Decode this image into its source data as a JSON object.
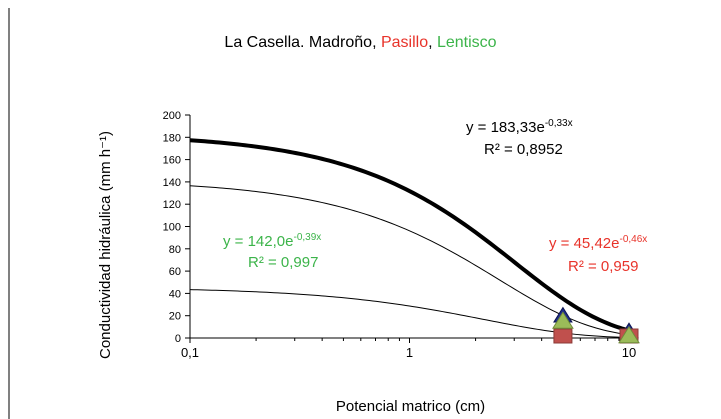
{
  "chart_data": {
    "type": "scatter",
    "title_parts": [
      {
        "text": "La Casella. Madroño, ",
        "color": "#000000"
      },
      {
        "text": "Pasillo",
        "color": "#e8332a"
      },
      {
        "text": ", ",
        "color": "#000000"
      },
      {
        "text": "Lentisco",
        "color": "#3cb44a"
      }
    ],
    "xlabel": "Potencial matrico (cm)",
    "ylabel": "Conductividad hidráulica (mm h⁻¹)",
    "x_scale": "log",
    "xlim": [
      0.1,
      10
    ],
    "ylim": [
      0,
      200
    ],
    "x_ticks": [
      {
        "value": 0.1,
        "label": "0,1"
      },
      {
        "value": 1,
        "label": "1"
      },
      {
        "value": 10,
        "label": "10"
      }
    ],
    "y_ticks": [
      0,
      20,
      40,
      60,
      80,
      100,
      120,
      140,
      160,
      180,
      200
    ],
    "grid": false,
    "series": [
      {
        "name": "Madroño",
        "color": "#000000",
        "marker_color": "#1f2d8a",
        "marker": "triangle",
        "points": [
          {
            "x": 5,
            "y": 20
          },
          {
            "x": 10,
            "y": 6
          }
        ],
        "fit": {
          "a": 183.33,
          "b": -0.33
        },
        "equation": {
          "prefix": "y = 183,33e",
          "exp": "-0,33x",
          "r2": "R² = 0,8952"
        }
      },
      {
        "name": "Pasillo",
        "color": "#e8332a",
        "marker_color": "#c0504d",
        "marker": "square",
        "points": [
          {
            "x": 5,
            "y": 0
          },
          {
            "x": 10,
            "y": 0
          }
        ],
        "fit": {
          "a": 45.42,
          "b": -0.46
        },
        "equation": {
          "prefix": "y = 45,42e",
          "exp": "-0,46x",
          "r2": "R² = 0,959"
        }
      },
      {
        "name": "Lentisco",
        "color": "#3cb44a",
        "marker_color": "#9bbb59",
        "marker": "triangle",
        "points": [
          {
            "x": 5,
            "y": 15
          },
          {
            "x": 10,
            "y": 2
          }
        ],
        "fit": {
          "a": 142.0,
          "b": -0.39
        },
        "equation": {
          "prefix": "y = 142,0e",
          "exp": "-0,39x",
          "r2": "R² = 0,997"
        }
      }
    ]
  }
}
